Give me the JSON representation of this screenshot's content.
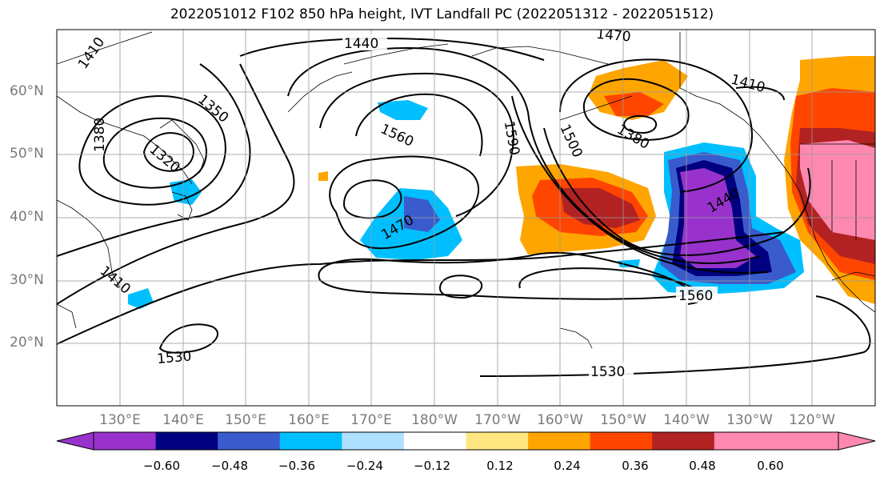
{
  "title": "2022051012 F102 850 hPa height, IVT Landfall PC (2022051312 - 2022051512)",
  "lat_labels": [
    "60°N",
    "50°N",
    "40°N",
    "30°N",
    "20°N"
  ],
  "lon_labels": [
    "130°E",
    "140°E",
    "150°E",
    "160°E",
    "170°E",
    "180°W",
    "170°W",
    "160°W",
    "150°W",
    "140°W",
    "130°W",
    "120°W"
  ],
  "contour_labels": [
    "1410",
    "1440",
    "1470",
    "1350",
    "1380",
    "1320",
    "1560",
    "1590",
    "1500",
    "1380",
    "1410",
    "1440",
    "1470",
    "1560",
    "1410",
    "1530",
    "1530"
  ],
  "colorbar": {
    "ticks": [
      "−0.60",
      "−0.48",
      "−0.36",
      "−0.24",
      "−0.12",
      "0.12",
      "0.24",
      "0.36",
      "0.48",
      "0.60"
    ],
    "colors": [
      "#9932cc",
      "#000080",
      "#3a5bcc",
      "#00bfff",
      "#b0e0ff",
      "#ffffff",
      "#ffe680",
      "#ffa500",
      "#ff4500",
      "#b22222",
      "#ff88b0",
      "#ff88b0"
    ]
  }
}
